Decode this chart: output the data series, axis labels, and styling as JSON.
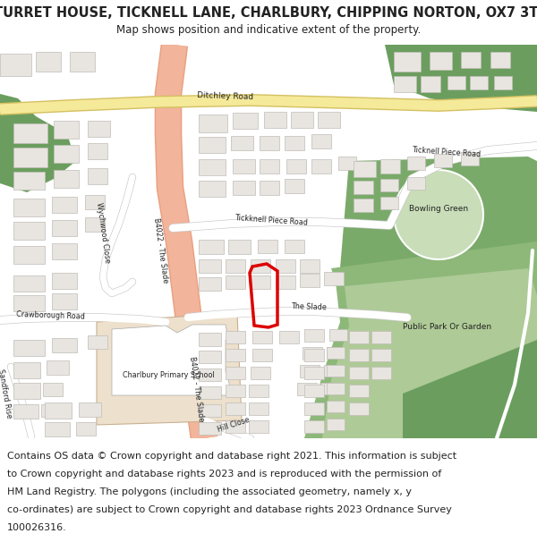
{
  "title": "TURRET HOUSE, TICKNELL LANE, CHARLBURY, CHIPPING NORTON, OX7 3TJ",
  "subtitle": "Map shows position and indicative extent of the property.",
  "footer_lines": [
    "Contains OS data © Crown copyright and database right 2021. This information is subject",
    "to Crown copyright and database rights 2023 and is reproduced with the permission of",
    "HM Land Registry. The polygons (including the associated geometry, namely x, y",
    "co-ordinates) are subject to Crown copyright and database rights 2023 Ordnance Survey",
    "100026316."
  ],
  "bg_color": "#f8f8f6",
  "map_bg": "#ffffff",
  "road_b4022_fill": "#f2b49a",
  "road_b4022_edge": "#e8a080",
  "road_yellow_fill": "#f5e99a",
  "road_yellow_edge": "#d4c060",
  "road_white": "#ffffff",
  "road_gray_edge": "#cccccc",
  "green_dark": "#6b9e5e",
  "green_medium": "#8db87a",
  "green_light": "#aeca96",
  "green_bowling": "#7aaa6a",
  "building_fill": "#e8e5e0",
  "building_edge": "#c0bdb8",
  "school_fill": "#ede0cc",
  "school_edge": "#c8b090",
  "property_color": "#dd0000",
  "text_dark": "#222222",
  "title_fontsize": 10.5,
  "subtitle_fontsize": 8.5,
  "footer_fontsize": 8.0,
  "label_fontsize": 6.5,
  "small_label_fontsize": 5.8
}
